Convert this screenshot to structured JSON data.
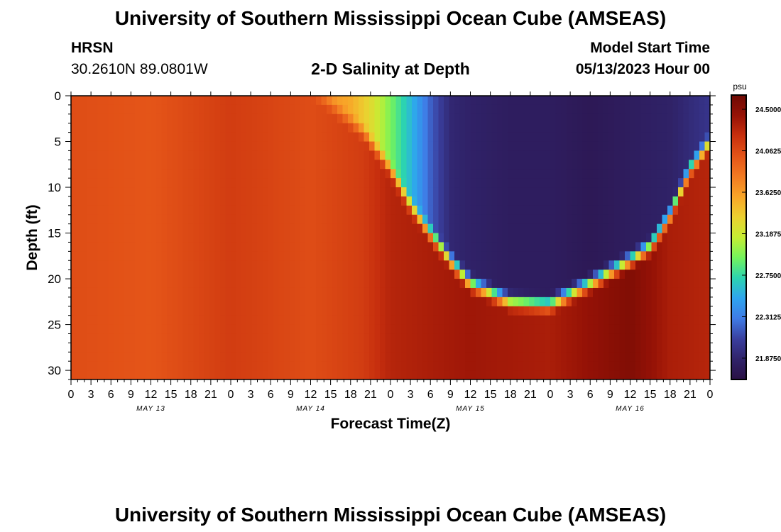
{
  "header": {
    "title": "University of Southern Mississippi Ocean Cube (AMSEAS)",
    "station": "HRSN",
    "coords": "30.2610N  89.0801W",
    "subtitle": "2-D Salinity at Depth",
    "model_start_label": "Model Start Time",
    "model_start_value": "05/13/2023 Hour 00"
  },
  "footer": {
    "title": "University of Southern Mississippi Ocean Cube (AMSEAS)"
  },
  "chart_data": {
    "type": "heatmap",
    "title": "2-D Salinity at Depth",
    "xlabel": "Forecast Time(Z)",
    "ylabel": "Depth (ft)",
    "x_range_hours": [
      0,
      96
    ],
    "y_range_ft": [
      0,
      31
    ],
    "y_ticks": [
      0,
      5,
      10,
      15,
      20,
      25,
      30
    ],
    "x_tick_labels": [
      "0",
      "3",
      "6",
      "9",
      "12",
      "15",
      "18",
      "21",
      "0",
      "3",
      "6",
      "9",
      "12",
      "15",
      "18",
      "21",
      "0",
      "3",
      "6",
      "9",
      "12",
      "15",
      "18",
      "21",
      "0",
      "3",
      "6",
      "9",
      "12",
      "15",
      "18",
      "21",
      "0"
    ],
    "day_labels": [
      {
        "label": "MAY 13",
        "hour": 12
      },
      {
        "label": "MAY 14",
        "hour": 36
      },
      {
        "label": "MAY 15",
        "hour": 60
      },
      {
        "label": "MAY 16",
        "hour": 84
      }
    ],
    "colorbar": {
      "unit": "psu",
      "min": 21.65,
      "max": 24.65,
      "tick_labels": [
        "24.5000",
        "24.0625",
        "23.6250",
        "23.1875",
        "22.7500",
        "22.3125",
        "21.8750"
      ],
      "tick_values": [
        24.5,
        24.0625,
        23.625,
        23.1875,
        22.75,
        22.3125,
        21.875
      ],
      "colors": [
        "#2a1044",
        "#30236a",
        "#3a3f9e",
        "#3f7be6",
        "#2ea5ef",
        "#2cd4b0",
        "#74f35c",
        "#c6ed33",
        "#ecd030",
        "#f8a528",
        "#f27a22",
        "#e45418",
        "#c8300e",
        "#961206",
        "#6e0a04"
      ]
    },
    "surface_salinity_by_hour": [
      [
        0,
        24.05
      ],
      [
        6,
        24.0
      ],
      [
        9,
        23.8
      ],
      [
        12,
        23.7
      ],
      [
        15,
        23.95
      ],
      [
        18,
        24.1
      ],
      [
        21,
        24.15
      ],
      [
        24,
        24.2
      ],
      [
        27,
        24.2
      ],
      [
        30,
        24.1
      ],
      [
        33,
        23.9
      ],
      [
        36,
        23.75
      ],
      [
        39,
        23.65
      ],
      [
        42,
        23.55
      ],
      [
        45,
        23.3
      ],
      [
        48,
        22.95
      ],
      [
        51,
        22.6
      ],
      [
        54,
        22.2
      ],
      [
        57,
        21.9
      ],
      [
        60,
        21.85
      ],
      [
        66,
        21.8
      ],
      [
        72,
        21.8
      ],
      [
        78,
        21.75
      ],
      [
        84,
        21.8
      ],
      [
        90,
        21.85
      ],
      [
        96,
        22.0
      ]
    ],
    "low_salinity_layer_bottom_ft": [
      [
        44,
        4
      ],
      [
        48,
        8
      ],
      [
        51,
        12
      ],
      [
        54,
        15
      ],
      [
        57,
        18
      ],
      [
        60,
        20.5
      ],
      [
        66,
        22.5
      ],
      [
        72,
        22.8
      ],
      [
        78,
        20.5
      ],
      [
        84,
        18.0
      ],
      [
        87,
        16.5
      ],
      [
        90,
        13
      ],
      [
        93,
        8
      ],
      [
        96,
        5
      ]
    ],
    "deep_salinity_by_hour": [
      [
        0,
        24.05
      ],
      [
        12,
        24.0
      ],
      [
        24,
        24.15
      ],
      [
        36,
        24.05
      ],
      [
        44,
        24.15
      ],
      [
        48,
        24.3
      ],
      [
        60,
        24.4
      ],
      [
        72,
        24.35
      ],
      [
        84,
        24.55
      ],
      [
        90,
        24.35
      ],
      [
        96,
        24.3
      ]
    ]
  }
}
